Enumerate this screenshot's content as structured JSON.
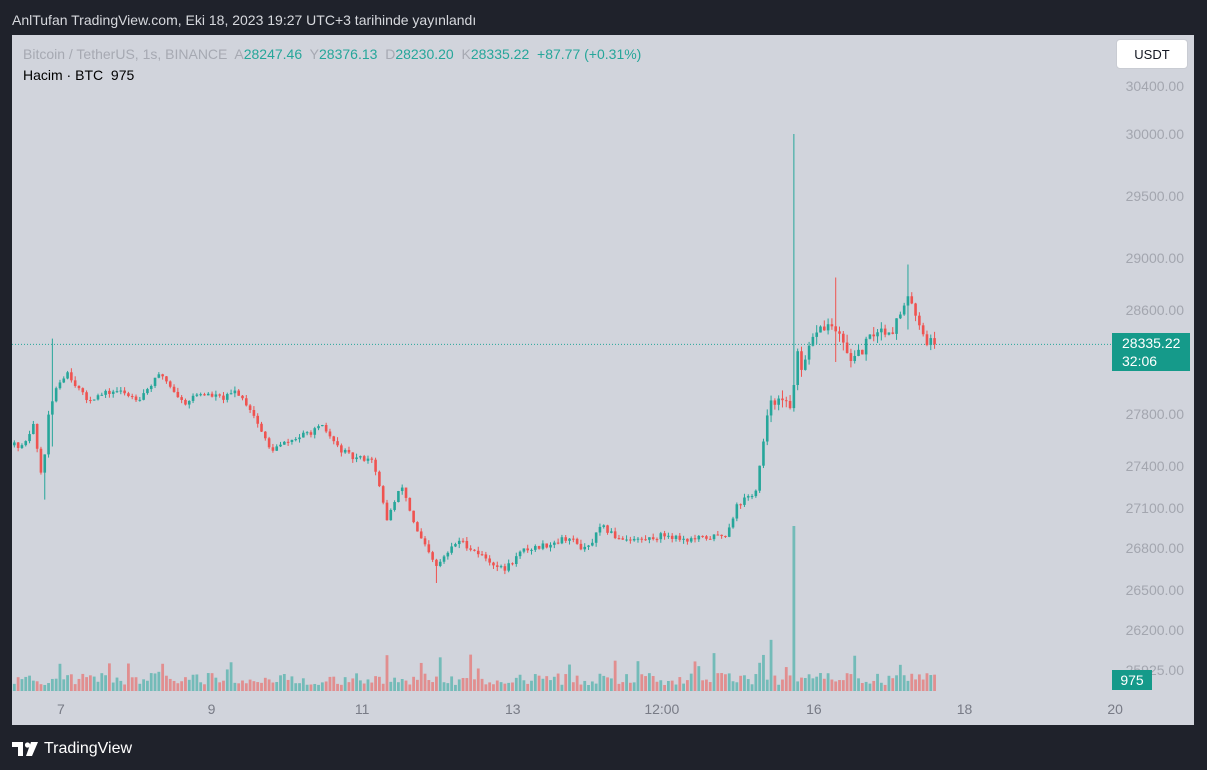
{
  "header": {
    "published_line": "AnlTufan TradingView.com, Eki 18, 2023 19:27 UTC+3 tarihinde yayınlandı"
  },
  "legend": {
    "symbol": "Bitcoin / TetherUS, 1s, BINANCE",
    "open_label": "A",
    "open_value": "28247.46",
    "high_label": "Y",
    "high_value": "28376.13",
    "low_label": "D",
    "low_value": "28230.20",
    "close_label": "K",
    "close_value": "28335.22",
    "change": "+87.77 (+0.31%)",
    "volume_label": "Hacim · BTC",
    "volume_value": "975"
  },
  "currency_button": "USDT",
  "last_price": {
    "price": "28335.22",
    "countdown": "32:06"
  },
  "volume_tag": "975",
  "footer": {
    "brand": "TradingView"
  },
  "colors": {
    "up": "#26a69a",
    "down": "#ef5350",
    "background": "#d1d4dc",
    "frame": "#1f222b"
  },
  "chart_data": {
    "type": "candlestick",
    "timeframe": "1s",
    "last_price": 28335.22,
    "y_ticks": [
      "30400.00",
      "30000.00",
      "29500.00",
      "29000.00",
      "28600.00",
      "27800.00",
      "27400.00",
      "27100.00",
      "26800.00",
      "26500.00",
      "26200.00",
      "25925.00"
    ],
    "x_ticks": [
      "7",
      "9",
      "11",
      "13",
      "12:00",
      "16",
      "18",
      "20"
    ],
    "x_range_days": [
      6.25,
      20.4
    ],
    "segments": [
      {
        "day": 6.25,
        "price": 27580
      },
      {
        "day": 6.45,
        "price": 27540
      },
      {
        "day": 6.6,
        "price": 27720
      },
      {
        "day": 6.72,
        "price": 27300
      },
      {
        "day": 6.8,
        "price": 27760
      },
      {
        "day": 6.9,
        "price": 28000
      },
      {
        "day": 7.05,
        "price": 28130
      },
      {
        "day": 7.3,
        "price": 27910
      },
      {
        "day": 7.7,
        "price": 27980
      },
      {
        "day": 8.0,
        "price": 27920
      },
      {
        "day": 8.3,
        "price": 28110
      },
      {
        "day": 8.6,
        "price": 27880
      },
      {
        "day": 8.8,
        "price": 27960
      },
      {
        "day": 9.15,
        "price": 27920
      },
      {
        "day": 9.3,
        "price": 27980
      },
      {
        "day": 9.5,
        "price": 27830
      },
      {
        "day": 9.75,
        "price": 27520
      },
      {
        "day": 10.0,
        "price": 27590
      },
      {
        "day": 10.2,
        "price": 27640
      },
      {
        "day": 10.45,
        "price": 27700
      },
      {
        "day": 10.65,
        "price": 27540
      },
      {
        "day": 10.85,
        "price": 27460
      },
      {
        "day": 11.1,
        "price": 27460
      },
      {
        "day": 11.3,
        "price": 27020
      },
      {
        "day": 11.5,
        "price": 27260
      },
      {
        "day": 11.7,
        "price": 26920
      },
      {
        "day": 11.95,
        "price": 26660
      },
      {
        "day": 12.25,
        "price": 26860
      },
      {
        "day": 12.55,
        "price": 26750
      },
      {
        "day": 12.85,
        "price": 26640
      },
      {
        "day": 13.1,
        "price": 26780
      },
      {
        "day": 13.45,
        "price": 26830
      },
      {
        "day": 13.7,
        "price": 26880
      },
      {
        "day": 13.95,
        "price": 26780
      },
      {
        "day": 14.15,
        "price": 26960
      },
      {
        "day": 14.35,
        "price": 26880
      },
      {
        "day": 14.7,
        "price": 26860
      },
      {
        "day": 15.0,
        "price": 26900
      },
      {
        "day": 15.3,
        "price": 26860
      },
      {
        "day": 15.6,
        "price": 26880
      },
      {
        "day": 15.8,
        "price": 26900
      },
      {
        "day": 15.95,
        "price": 27120
      },
      {
        "day": 16.2,
        "price": 27220
      },
      {
        "day": 16.4,
        "price": 27930
      },
      {
        "day": 16.65,
        "price": 27850
      },
      {
        "day": 16.75,
        "price": 28250
      },
      {
        "day": 16.8,
        "price": 28100
      },
      {
        "day": 17.0,
        "price": 28450
      },
      {
        "day": 17.2,
        "price": 28480
      },
      {
        "day": 17.5,
        "price": 28200
      },
      {
        "day": 17.8,
        "price": 28450
      },
      {
        "day": 18.0,
        "price": 28440
      },
      {
        "day": 18.25,
        "price": 28700
      },
      {
        "day": 18.45,
        "price": 28370
      },
      {
        "day": 18.6,
        "price": 28335
      }
    ],
    "events": [
      {
        "day": 16.7,
        "high": 30000,
        "low": 28100
      },
      {
        "day": 18.2,
        "high": 28950,
        "low": 28450
      },
      {
        "day": 6.84,
        "high": 28380,
        "low": 27550
      },
      {
        "day": 6.73,
        "high": 27300,
        "low": 27160
      },
      {
        "day": 11.95,
        "high": 26660,
        "low": 26550
      },
      {
        "day": 17.25,
        "high": 28850,
        "low": 28200
      }
    ],
    "volume_spikes": [
      {
        "day": 16.7,
        "volume": 1000
      },
      {
        "day": 16.4,
        "volume": 310
      },
      {
        "day": 11.75,
        "volume": 170
      },
      {
        "day": 6.95,
        "volume": 165
      }
    ]
  }
}
